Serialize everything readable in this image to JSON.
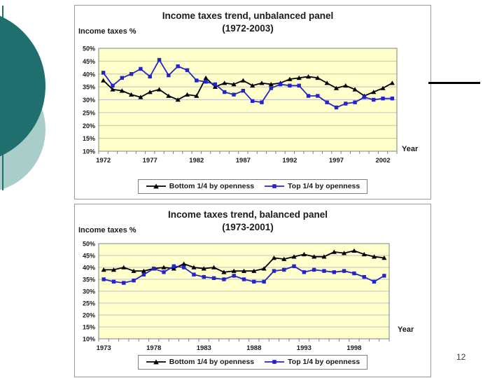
{
  "slide": {
    "page_number": "12"
  },
  "decor": {
    "dark_circle_color": "#1e6f6d",
    "light_circle_color": "#a9cdc9",
    "accent_line_color": "#1e6f6d",
    "divider_line_color": "#000000"
  },
  "chart_style": {
    "plot_border_color": "#808080",
    "gridline_color": "#c0c0c0",
    "tick_color": "#808080",
    "text_color": "#1a1a1a"
  },
  "chart_data": [
    {
      "type": "line",
      "title": "Income taxes trend, unbalanced panel",
      "subtitle": "(1972-2003)",
      "ylabel": "Income taxes %",
      "xlabel": "Year",
      "ylim": [
        10,
        50
      ],
      "ytick_step": 5,
      "ytick_suffix": "%",
      "grid": true,
      "plot_bg": "#ffffcc",
      "legend_position": "bottom",
      "x": [
        1972,
        1973,
        1974,
        1975,
        1976,
        1977,
        1978,
        1979,
        1980,
        1981,
        1982,
        1983,
        1984,
        1985,
        1986,
        1987,
        1988,
        1989,
        1990,
        1991,
        1992,
        1993,
        1994,
        1995,
        1996,
        1997,
        1998,
        1999,
        2000,
        2001,
        2002,
        2003
      ],
      "x_tick_labels": [
        "1972",
        "1977",
        "1982",
        "1987",
        "1992",
        "1997",
        "2002"
      ],
      "series": [
        {
          "name": "Bottom 1/4 by openness",
          "color": "#000000",
          "marker": "triangle",
          "values": [
            37.5,
            34,
            33.5,
            32,
            31,
            33,
            34,
            31.5,
            30,
            32,
            31.5,
            38.5,
            35,
            36.5,
            36,
            37.5,
            35.5,
            36.5,
            36,
            36.5,
            38,
            38.5,
            39,
            38.5,
            36.5,
            34.5,
            35.5,
            34,
            31.5,
            33,
            34.5,
            36.5
          ]
        },
        {
          "name": "Top 1/4 by openness",
          "color": "#2424c8",
          "marker": "square",
          "values": [
            40.5,
            35.5,
            38.5,
            40,
            42,
            39,
            45.5,
            39.5,
            43,
            41.5,
            37.5,
            37,
            36,
            33,
            32,
            33.5,
            29.5,
            29,
            34.5,
            36,
            35.5,
            35.5,
            31.5,
            31.5,
            29,
            27,
            28.5,
            29,
            31,
            30,
            30.5,
            30.5
          ]
        }
      ]
    },
    {
      "type": "line",
      "title": "Income taxes trend, balanced panel",
      "subtitle": "(1973-2001)",
      "ylabel": "Income taxes %",
      "xlabel": "Year",
      "ylim": [
        10,
        50
      ],
      "ytick_step": 5,
      "ytick_suffix": "%",
      "grid": true,
      "plot_bg": "#ffffcc",
      "legend_position": "bottom",
      "x": [
        1973,
        1974,
        1975,
        1976,
        1977,
        1978,
        1979,
        1980,
        1981,
        1982,
        1983,
        1984,
        1985,
        1986,
        1987,
        1988,
        1989,
        1990,
        1991,
        1992,
        1993,
        1994,
        1995,
        1996,
        1997,
        1998,
        1999,
        2000,
        2001
      ],
      "x_tick_labels": [
        "1973",
        "1978",
        "1983",
        "1988",
        "1993",
        "1998"
      ],
      "series": [
        {
          "name": "Bottom 1/4 by openness",
          "color": "#000000",
          "marker": "triangle",
          "values": [
            39,
            39,
            40,
            38.5,
            38.5,
            39.5,
            40,
            39.5,
            41.5,
            40,
            39.5,
            40,
            38,
            38.5,
            38.5,
            38.5,
            39.5,
            44,
            43.5,
            44.5,
            45.5,
            44.5,
            44.5,
            46.5,
            46,
            47,
            45.5,
            44.5,
            44
          ]
        },
        {
          "name": "Top 1/4 by openness",
          "color": "#2424c8",
          "marker": "square",
          "values": [
            35,
            34,
            33.5,
            34.5,
            37,
            39.5,
            38,
            40.5,
            40,
            37,
            36,
            35.5,
            35,
            36.5,
            35,
            34,
            34,
            38.5,
            39,
            40.5,
            38,
            39,
            38.5,
            38,
            38.5,
            37.5,
            36,
            34,
            36.5
          ]
        }
      ]
    }
  ]
}
